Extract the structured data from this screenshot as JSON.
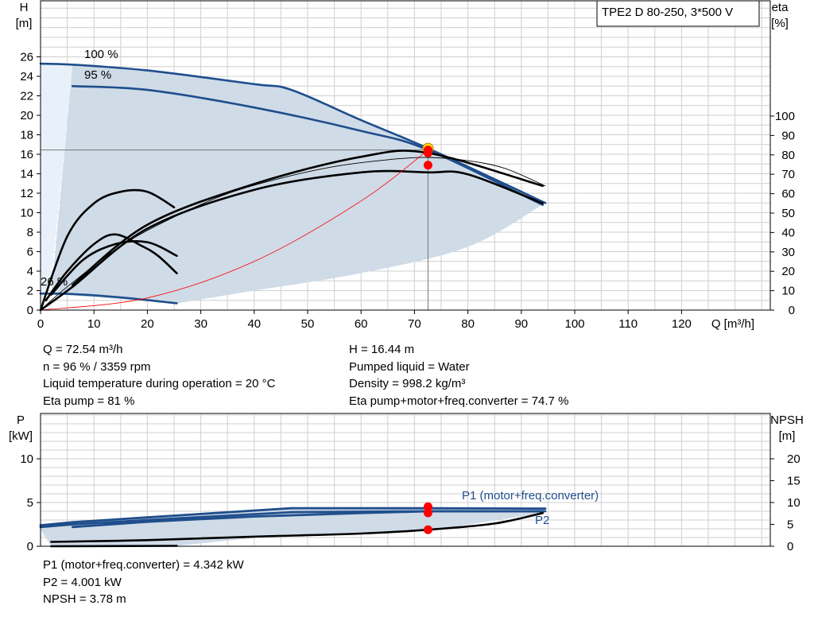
{
  "colors": {
    "blue": "#1f4e8c",
    "band": "#cfdbe7",
    "light_band": "#e8f1fa",
    "grid": "#cfcfcf",
    "black": "#000000",
    "red": "#ff0000",
    "yellow": "#ffe600"
  },
  "top_panel": {
    "model_label": "TPE2 D 80-250, 3*500 V",
    "label_100": "100 %",
    "label_95": "95 %",
    "label_26": "26 %"
  },
  "bottom_panel": {
    "p1_label": "P1 (motor+freq.converter)",
    "p2_label": "P2"
  },
  "info_top": {
    "left": [
      "Q = 72.54 m³/h",
      "n = 96 % / 3359 rpm",
      "Liquid temperature during operation = 20 °C",
      "Eta pump = 81 %"
    ],
    "right": [
      "H = 16.44 m",
      "Pumped liquid = Water",
      "Density = 998.2 kg/m³",
      "Eta pump+motor+freq.converter = 74.7 %"
    ]
  },
  "info_bottom": [
    "P1 (motor+freq.converter) = 4.342 kW",
    "P2 = 4.001 kW",
    "NPSH = 3.78 m"
  ],
  "chart_data": [
    {
      "type": "line",
      "title": "",
      "x_axis": {
        "label": "Q [m³/h]",
        "range": [
          0,
          132
        ],
        "ticks": [
          0,
          10,
          20,
          30,
          40,
          50,
          60,
          70,
          80,
          90,
          100,
          110,
          120
        ]
      },
      "y_left": {
        "label_line1": "H",
        "label_line2": "[m]",
        "range": [
          0,
          26.5
        ],
        "ticks": [
          0,
          2,
          4,
          6,
          8,
          10,
          12,
          14,
          16,
          18,
          20,
          22,
          24,
          26
        ]
      },
      "y_right": {
        "label_line1": "eta",
        "label_line2": "[%]",
        "range": [
          0,
          100
        ],
        "ticks": [
          0,
          10,
          20,
          30,
          40,
          50,
          60,
          70,
          80,
          90,
          100
        ]
      },
      "grid": true,
      "series": [
        {
          "name": "100 %",
          "color": "#1f4e8c",
          "axis": "H",
          "x": [
            0,
            6,
            20,
            40,
            47,
            60,
            72.54,
            94.5
          ],
          "y": [
            25.3,
            25.2,
            24.6,
            23.2,
            22.6,
            19.5,
            16.6,
            11.0
          ]
        },
        {
          "name": "95 %",
          "color": "#1f4e8c",
          "axis": "H",
          "x": [
            6,
            20,
            40,
            60,
            72.54,
            94
          ],
          "y": [
            23.0,
            22.6,
            20.8,
            18.4,
            16.44,
            10.8
          ]
        },
        {
          "name": "26 %",
          "color": "#1f4e8c",
          "axis": "H",
          "x": [
            0,
            6,
            15,
            25.5
          ],
          "y": [
            1.7,
            1.65,
            1.3,
            0.7
          ]
        },
        {
          "name": "",
          "color": "#000000",
          "axis": "eta",
          "x": [
            0,
            5,
            15,
            25,
            35,
            45,
            55,
            65,
            72.54,
            80,
            87,
            94.5
          ],
          "y": [
            0,
            12,
            33,
            48,
            60,
            68,
            74,
            77.5,
            78.7,
            77,
            73,
            64
          ]
        },
        {
          "name": "",
          "color": "#000000",
          "axis": "eta",
          "x": [
            6,
            20,
            40,
            60,
            72.54,
            94
          ],
          "y": [
            13,
            44,
            65,
            79,
            81,
            64
          ]
        },
        {
          "name": "",
          "color": "#000000",
          "axis": "eta",
          "x": [
            0,
            6,
            20,
            40,
            60,
            72.54,
            80,
            94
          ],
          "y": [
            0,
            12,
            42,
            62,
            71,
            71,
            70,
            55
          ]
        },
        {
          "name": "",
          "color": "#000000",
          "axis": "eta",
          "x": [
            1,
            5,
            10,
            14,
            19,
            22,
            25.5
          ],
          "y": [
            5,
            20,
            34,
            39,
            33,
            28,
            19
          ]
        },
        {
          "name": "",
          "color": "#000000",
          "axis": "eta",
          "x": [
            2,
            8,
            14,
            20,
            25.5
          ],
          "y": [
            8,
            26,
            34,
            35,
            28
          ]
        },
        {
          "name": "",
          "color": "#000000",
          "axis": "eta",
          "x": [
            0,
            5,
            10,
            15,
            20,
            25
          ],
          "y": [
            0,
            38,
            55,
            61,
            61,
            53
          ]
        },
        {
          "name": "",
          "color": "#ff0000",
          "axis": "H",
          "x": [
            0,
            20,
            40,
            60,
            72.54
          ],
          "y": [
            0,
            1.25,
            5.0,
            11.2,
            16.44
          ]
        }
      ],
      "operating_point": {
        "q": 72.54,
        "h": 16.44,
        "eta_pump": 81,
        "eta_total": 74.7
      }
    },
    {
      "type": "line",
      "title": "",
      "x_axis": {
        "label": "Q [m³/h]",
        "range": [
          0,
          132
        ]
      },
      "y_left": {
        "label_line1": "P",
        "label_line2": "[kW]",
        "range": [
          0,
          12
        ],
        "ticks": [
          0,
          5,
          10
        ]
      },
      "y_right": {
        "label_line1": "NPSH",
        "label_line2": "[m]",
        "range": [
          0,
          24
        ],
        "ticks": [
          0,
          5,
          10,
          15,
          20
        ]
      },
      "grid": true,
      "series": [
        {
          "name": "P1 (motor+freq.converter)",
          "color": "#1f4e8c",
          "axis": "P",
          "x": [
            0,
            6,
            20,
            47,
            72.54,
            94.5
          ],
          "y": [
            2.4,
            2.75,
            3.3,
            4.35,
            4.342,
            4.3
          ]
        },
        {
          "name": "P2",
          "color": "#1f4e8c",
          "axis": "P",
          "x": [
            0,
            6,
            20,
            47,
            72.54,
            94.5
          ],
          "y": [
            2.2,
            2.5,
            3.0,
            3.9,
            4.001,
            4.0
          ]
        },
        {
          "name": "",
          "color": "#1f4e8c",
          "axis": "P",
          "x": [
            6,
            20,
            40,
            60,
            72.54,
            94
          ],
          "y": [
            2.2,
            2.8,
            3.4,
            3.8,
            4.0,
            4.0
          ]
        },
        {
          "name": "",
          "color": "#000000",
          "axis": "P",
          "x": [
            2,
            25.5
          ],
          "y": [
            0.0,
            0.05
          ]
        },
        {
          "name": "NPSH",
          "color": "#000000",
          "axis": "NPSH",
          "x": [
            2,
            20,
            40,
            60,
            72.54,
            85,
            94
          ],
          "y": [
            1.0,
            1.4,
            2.2,
            2.9,
            3.78,
            5.2,
            7.6
          ]
        }
      ],
      "operating_point": {
        "q": 72.54,
        "p1": 4.342,
        "p2": 4.001,
        "npsh": 3.78
      }
    }
  ]
}
